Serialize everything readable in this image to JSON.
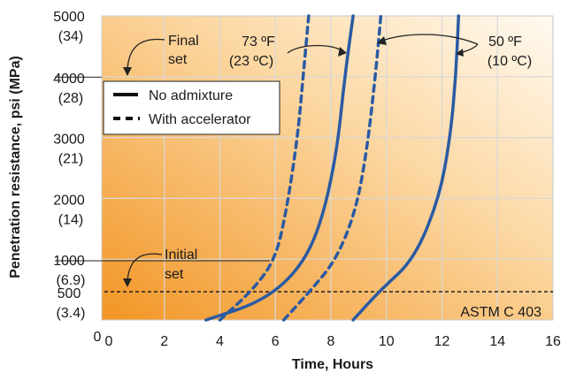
{
  "chart_data": {
    "type": "line",
    "xlabel": "Time, Hours",
    "ylabel": "Penetration resistance, psi (MPa)",
    "xlim": [
      0,
      16
    ],
    "ylim": [
      0,
      5000
    ],
    "x_ticks": [
      "0",
      "2",
      "4",
      "6",
      "8",
      "10",
      "12",
      "14",
      "16"
    ],
    "y_ticks": [
      {
        "value": 5000,
        "psi": "5000",
        "mpa": "(34)"
      },
      {
        "value": 4000,
        "psi": "4000",
        "mpa": "(28)"
      },
      {
        "value": 3000,
        "psi": "3000",
        "mpa": "(21)"
      },
      {
        "value": 2000,
        "psi": "2000",
        "mpa": "(14)"
      },
      {
        "value": 1000,
        "psi": "1000",
        "mpa": "(6.9)"
      },
      {
        "value": 500,
        "psi": "500",
        "mpa": "(3.4)"
      }
    ],
    "y_origin_label": "0",
    "reference_lines": [
      {
        "value": 4000,
        "style": "dashed",
        "label_psi": "4000",
        "label": "Final set"
      },
      {
        "value": 500,
        "style": "dashed",
        "label_psi": "500",
        "label": "Initial set"
      }
    ],
    "legend": [
      {
        "style": "solid",
        "label": "No admixture"
      },
      {
        "style": "dashed",
        "label": "With accelerator"
      }
    ],
    "annotations": {
      "final_set": [
        "Final",
        "set"
      ],
      "initial_set": [
        "Initial",
        "set"
      ],
      "temp_73": [
        "73 ºF",
        "(23 ºC)"
      ],
      "temp_50": [
        "50 ºF",
        "(10 ºC)"
      ],
      "standard": "ASTM C 403"
    },
    "series": [
      {
        "style": "dashed",
        "values": [
          [
            4.0,
            0
          ],
          [
            5.2,
            500
          ],
          [
            6.0,
            1000
          ],
          [
            6.4,
            1800
          ],
          [
            6.8,
            3000
          ],
          [
            7.0,
            4000
          ],
          [
            7.2,
            5000
          ]
        ]
      },
      {
        "style": "solid",
        "values": [
          [
            3.5,
            0
          ],
          [
            5.5,
            300
          ],
          [
            6.8,
            800
          ],
          [
            7.6,
            1500
          ],
          [
            8.2,
            2700
          ],
          [
            8.5,
            4000
          ],
          [
            8.8,
            5000
          ]
        ]
      },
      {
        "style": "dashed",
        "values": [
          [
            6.3,
            0
          ],
          [
            7.3,
            500
          ],
          [
            8.2,
            1000
          ],
          [
            8.9,
            1800
          ],
          [
            9.3,
            2800
          ],
          [
            9.6,
            4000
          ],
          [
            9.8,
            5000
          ]
        ]
      },
      {
        "style": "solid",
        "values": [
          [
            8.8,
            0
          ],
          [
            9.8,
            500
          ],
          [
            11.0,
            1000
          ],
          [
            11.9,
            2000
          ],
          [
            12.3,
            3000
          ],
          [
            12.5,
            4000
          ],
          [
            12.6,
            5000
          ]
        ]
      }
    ],
    "colors": {
      "series": "#2a5aa3",
      "background_light": "#fff3df",
      "background_dark": "#f29a28",
      "grid": "#d8d8d8"
    },
    "grid": true
  }
}
